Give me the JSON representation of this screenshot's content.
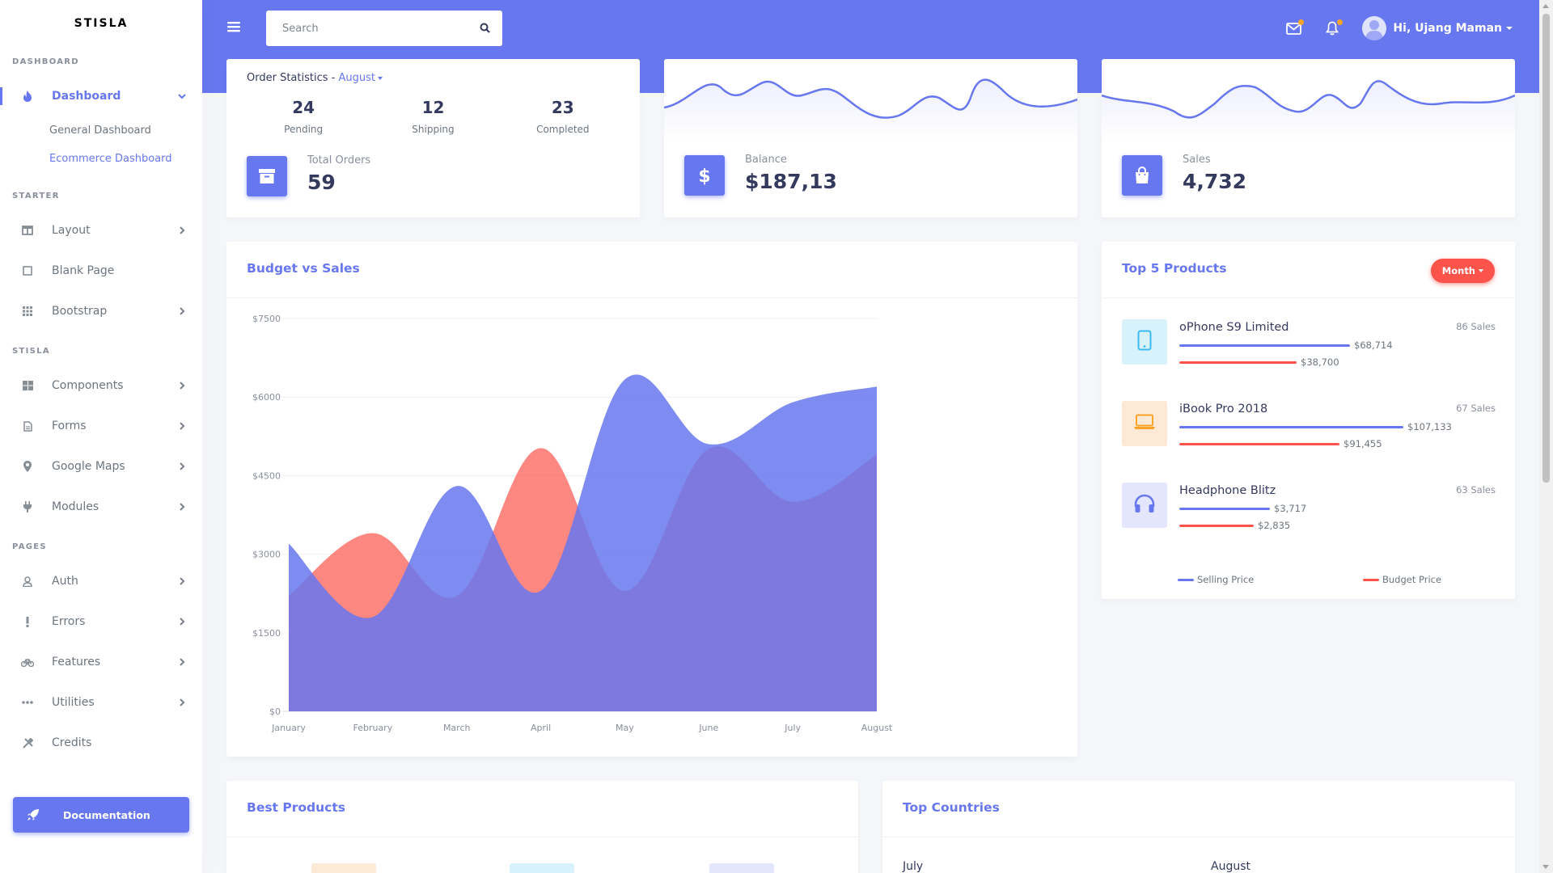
{
  "brand": "STISLA",
  "sidebar": {
    "sections": {
      "dashboard": "DASHBOARD",
      "starter": "STARTER",
      "stisla": "STISLA",
      "pages": "PAGES"
    },
    "dashboard": {
      "label": "Dashboard",
      "icon": "fire-icon"
    },
    "submenu": [
      "General Dashboard",
      "Ecommerce Dashboard"
    ],
    "starter_items": [
      "Layout",
      "Blank Page",
      "Bootstrap"
    ],
    "stisla_items": [
      "Components",
      "Forms",
      "Google Maps",
      "Modules"
    ],
    "pages_items": [
      "Auth",
      "Errors",
      "Features",
      "Utilities",
      "Credits"
    ],
    "documentation": "Documentation"
  },
  "navbar": {
    "search_placeholder": "Search",
    "user_greeting": "Hi, Ujang Maman"
  },
  "order_stats": {
    "title": "Order Statistics - ",
    "month": "August",
    "items": [
      {
        "value": "24",
        "label": "Pending"
      },
      {
        "value": "12",
        "label": "Shipping"
      },
      {
        "value": "23",
        "label": "Completed"
      }
    ],
    "total_label": "Total Orders",
    "total_value": "59"
  },
  "balance": {
    "label": "Balance",
    "value": "$187,13"
  },
  "sales": {
    "label": "Sales",
    "value": "4,732"
  },
  "budget_chart": {
    "title": "Budget vs Sales"
  },
  "chart_data": {
    "type": "area",
    "title": "Budget vs Sales",
    "categories": [
      "January",
      "February",
      "March",
      "April",
      "May",
      "June",
      "July",
      "August"
    ],
    "y_ticks": [
      "$0",
      "$1500",
      "$3000",
      "$4500",
      "$6000",
      "$7500"
    ],
    "ylim": [
      0,
      7500
    ],
    "series": [
      {
        "values": [
          2207,
          3403,
          2200,
          5025,
          2300,
          5012,
          4000,
          4900
        ],
        "color": "#fc544b"
      },
      {
        "values": [
          3200,
          1800,
          4302,
          2300,
          6335,
          5100,
          5900,
          6200
        ],
        "color": "#6777ef"
      }
    ]
  },
  "top_products": {
    "title": "Top 5 Products",
    "filter": "Month",
    "items": [
      {
        "name": "oPhone S9 Limited",
        "sales": "86 Sales",
        "selling": "$68,714",
        "budget": "$38,700",
        "selling_frac": 0.64,
        "budget_frac": 0.44,
        "icon": "mobile-icon",
        "bg": "#d8f2fb",
        "fg": "#3abaf4"
      },
      {
        "name": "iBook Pro 2018",
        "sales": "67 Sales",
        "selling": "$107,133",
        "budget": "$91,455",
        "selling_frac": 0.84,
        "budget_frac": 0.6,
        "icon": "laptop-icon",
        "bg": "#fde9d5",
        "fg": "#ffa426"
      },
      {
        "name": "Headphone Blitz",
        "sales": "63 Sales",
        "selling": "$3,717",
        "budget": "$2,835",
        "selling_frac": 0.34,
        "budget_frac": 0.28,
        "icon": "headphones-icon",
        "bg": "#e3e6fc",
        "fg": "#6777ef"
      }
    ],
    "legend": {
      "selling": "Selling Price",
      "budget": "Budget Price"
    }
  },
  "best_products": {
    "title": "Best Products"
  },
  "top_countries": {
    "title": "Top Countries",
    "months": [
      "July",
      "August"
    ]
  },
  "colors": {
    "primary": "#6777ef",
    "danger": "#fc544b",
    "warning": "#ffa426",
    "info": "#3abaf4"
  }
}
